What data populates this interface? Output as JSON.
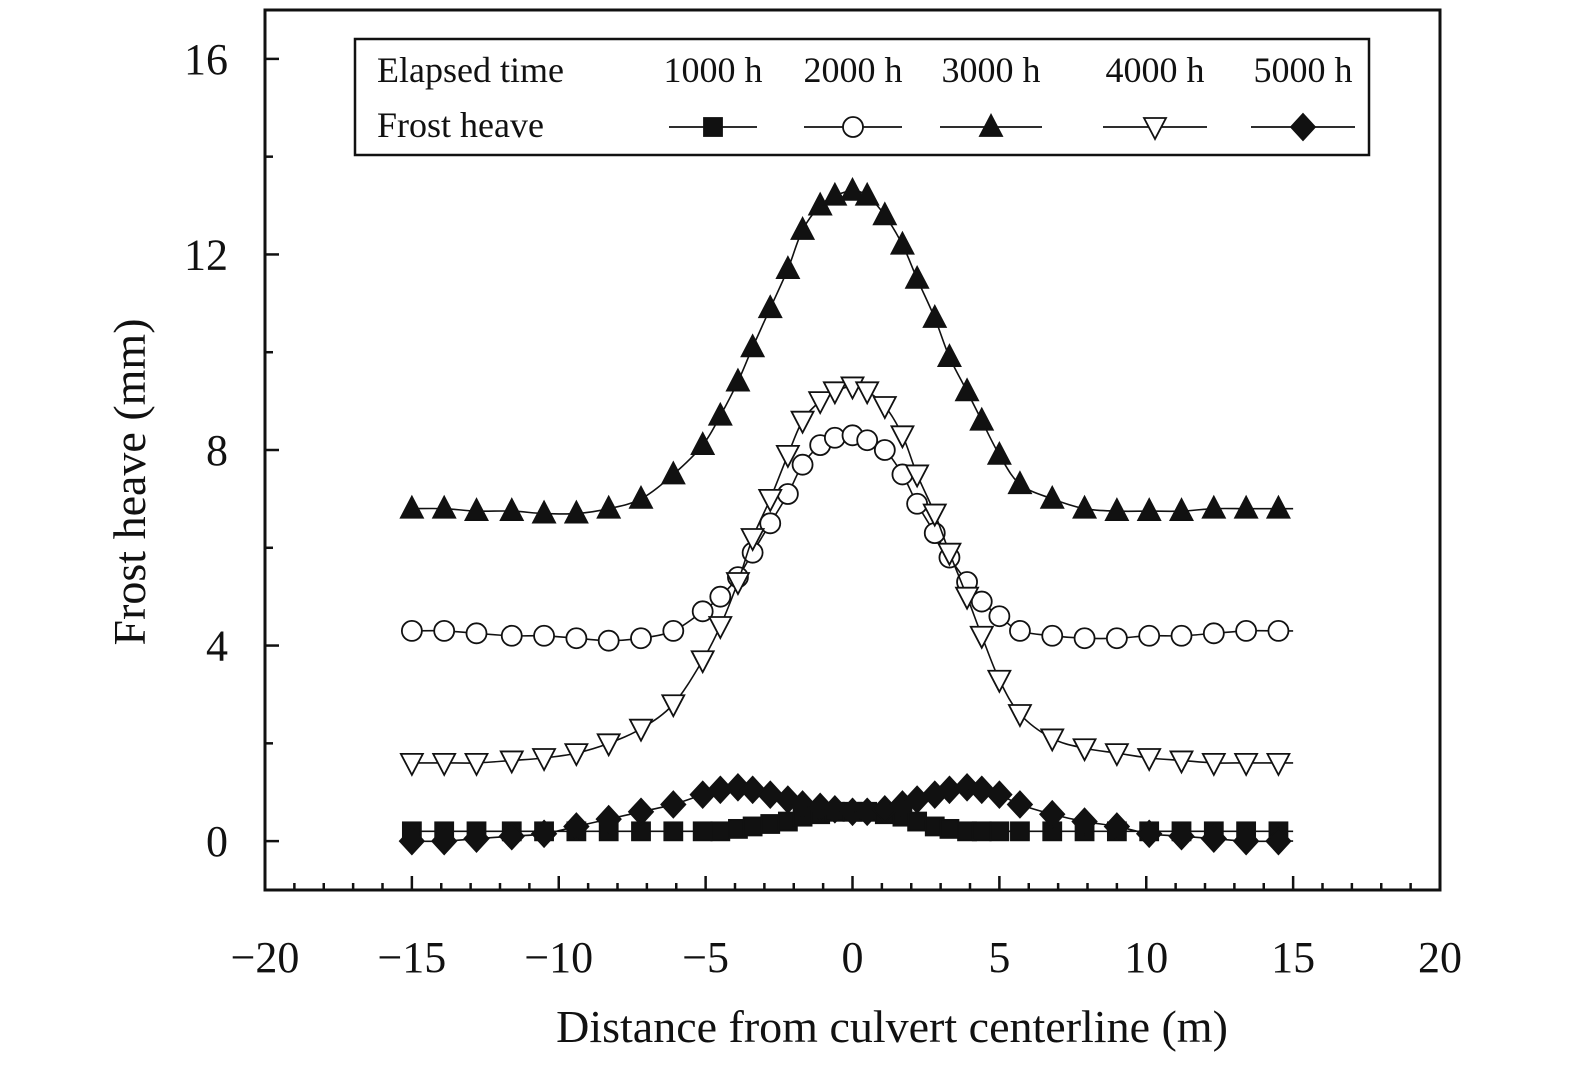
{
  "chart_data": {
    "type": "line",
    "xlabel": "Distance from culvert centerline (m)",
    "ylabel": "Frost heave (mm)",
    "xlim": [
      -20,
      20
    ],
    "ylim": [
      -1,
      17
    ],
    "xticks": [
      -20,
      -15,
      -10,
      -5,
      0,
      5,
      10,
      15,
      20
    ],
    "xtick_labels": [
      "−20",
      "−15",
      "−10",
      "−5",
      "0",
      "5",
      "10",
      "15",
      "20"
    ],
    "yticks": [
      0,
      4,
      8,
      12,
      16
    ],
    "ytick_labels": [
      "0",
      "4",
      "8",
      "12",
      "16"
    ],
    "grid": false,
    "legend": {
      "placement": "top-right",
      "row1_label": "Elapsed time",
      "row2_label": "Frost heave"
    },
    "x": [
      -15.0,
      -13.9,
      -12.8,
      -11.6,
      -10.5,
      -9.4,
      -8.3,
      -7.2,
      -6.1,
      -5.1,
      -4.5,
      -3.9,
      -3.4,
      -2.8,
      -2.2,
      -1.7,
      -1.1,
      -0.6,
      0.0,
      0.5,
      1.1,
      1.7,
      2.2,
      2.8,
      3.3,
      3.9,
      4.4,
      5.0,
      5.7,
      6.8,
      7.9,
      9.0,
      10.1,
      11.2,
      12.3,
      13.4,
      14.5
    ],
    "series": [
      {
        "name": "1000 h",
        "marker": "square-filled",
        "values": [
          0.2,
          0.2,
          0.2,
          0.2,
          0.2,
          0.2,
          0.2,
          0.2,
          0.2,
          0.2,
          0.2,
          0.25,
          0.3,
          0.35,
          0.4,
          0.5,
          0.55,
          0.6,
          0.6,
          0.6,
          0.55,
          0.5,
          0.4,
          0.3,
          0.25,
          0.2,
          0.2,
          0.2,
          0.2,
          0.2,
          0.2,
          0.2,
          0.2,
          0.2,
          0.2,
          0.2,
          0.2
        ]
      },
      {
        "name": "2000 h",
        "marker": "circle-open",
        "values": [
          4.3,
          4.3,
          4.25,
          4.2,
          4.2,
          4.15,
          4.1,
          4.15,
          4.3,
          4.7,
          5.0,
          5.4,
          5.9,
          6.5,
          7.1,
          7.7,
          8.1,
          8.25,
          8.3,
          8.2,
          8.0,
          7.5,
          6.9,
          6.3,
          5.8,
          5.3,
          4.9,
          4.6,
          4.3,
          4.2,
          4.15,
          4.15,
          4.2,
          4.2,
          4.25,
          4.3,
          4.3
        ]
      },
      {
        "name": "3000 h",
        "marker": "triangle-up-filled",
        "values": [
          6.8,
          6.8,
          6.75,
          6.75,
          6.7,
          6.7,
          6.8,
          7.0,
          7.5,
          8.1,
          8.7,
          9.4,
          10.1,
          10.9,
          11.7,
          12.5,
          13.0,
          13.2,
          13.3,
          13.2,
          12.8,
          12.2,
          11.5,
          10.7,
          9.9,
          9.2,
          8.6,
          7.9,
          7.3,
          7.0,
          6.8,
          6.75,
          6.75,
          6.75,
          6.8,
          6.8,
          6.8
        ]
      },
      {
        "name": "4000 h",
        "marker": "triangle-down-open",
        "values": [
          1.6,
          1.6,
          1.6,
          1.65,
          1.7,
          1.8,
          2.0,
          2.3,
          2.8,
          3.7,
          4.4,
          5.3,
          6.2,
          7.0,
          7.9,
          8.6,
          9.0,
          9.2,
          9.3,
          9.2,
          8.9,
          8.3,
          7.5,
          6.7,
          5.9,
          5.0,
          4.2,
          3.3,
          2.6,
          2.1,
          1.9,
          1.8,
          1.7,
          1.65,
          1.6,
          1.6,
          1.6
        ]
      },
      {
        "name": "5000 h",
        "marker": "diamond-filled",
        "values": [
          0.0,
          0.0,
          0.05,
          0.1,
          0.15,
          0.3,
          0.45,
          0.6,
          0.75,
          0.95,
          1.05,
          1.1,
          1.05,
          0.95,
          0.85,
          0.75,
          0.7,
          0.65,
          0.6,
          0.6,
          0.65,
          0.75,
          0.85,
          0.95,
          1.05,
          1.1,
          1.05,
          0.95,
          0.75,
          0.55,
          0.4,
          0.3,
          0.15,
          0.1,
          0.05,
          0.0,
          0.0
        ]
      }
    ]
  }
}
